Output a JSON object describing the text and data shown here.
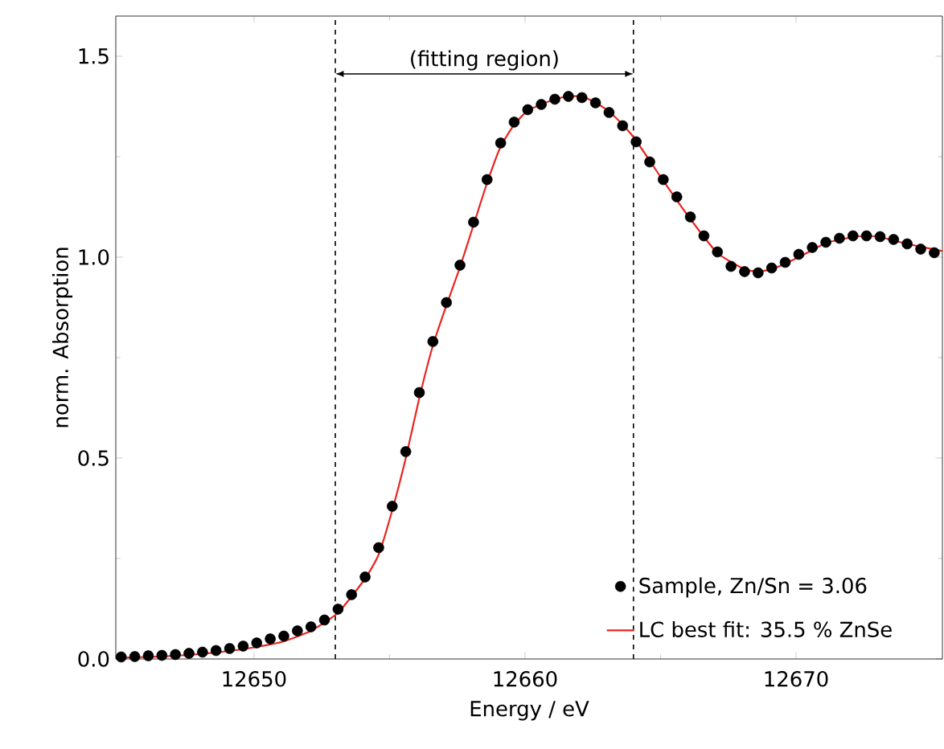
{
  "chart_data": {
    "type": "scatter",
    "xlabel": "Energy / eV",
    "ylabel": "norm. Absorption",
    "xlim": [
      12644.9,
      12675.4
    ],
    "ylim": [
      0,
      1.6
    ],
    "xticks": [
      12650,
      12660,
      12670
    ],
    "yticks": [
      {
        "value": 0,
        "label": "0.0"
      },
      0.5,
      {
        "value": 1,
        "label": "1.0"
      },
      1.5
    ],
    "legend": "bottom right",
    "series": [
      {
        "name": "Sample, Zn/Sn = 3.06",
        "color": "#000000",
        "marker": "circle",
        "x": [
          12645.1,
          12645.6,
          12646.1,
          12646.6,
          12647.1,
          12647.6,
          12648.1,
          12648.6,
          12649.1,
          12649.6,
          12650.1,
          12650.6,
          12651.1,
          12651.6,
          12652.1,
          12652.6,
          12653.1,
          12653.6,
          12654.1,
          12654.6,
          12655.1,
          12655.6,
          12656.1,
          12656.6,
          12657.1,
          12657.6,
          12658.1,
          12658.6,
          12659.1,
          12659.6,
          12660.1,
          12660.6,
          12661.1,
          12661.6,
          12662.1,
          12662.6,
          12663.1,
          12663.6,
          12664.1,
          12664.6,
          12665.1,
          12665.6,
          12666.1,
          12666.6,
          12667.1,
          12667.6,
          12668.1,
          12668.6,
          12669.1,
          12669.6,
          12670.1,
          12670.6,
          12671.1,
          12671.6,
          12672.1,
          12672.6,
          12673.1,
          12673.6,
          12674.1,
          12674.6,
          12675.1
        ],
        "values": [
          0.005,
          0.006,
          0.008,
          0.009,
          0.011,
          0.014,
          0.017,
          0.021,
          0.026,
          0.032,
          0.04,
          0.05,
          0.057,
          0.07,
          0.08,
          0.097,
          0.124,
          0.16,
          0.204,
          0.277,
          0.38,
          0.516,
          0.663,
          0.79,
          0.887,
          0.98,
          1.087,
          1.193,
          1.284,
          1.336,
          1.367,
          1.38,
          1.393,
          1.4,
          1.397,
          1.384,
          1.36,
          1.327,
          1.287,
          1.237,
          1.193,
          1.15,
          1.1,
          1.053,
          1.013,
          0.977,
          0.964,
          0.961,
          0.973,
          0.987,
          1.007,
          1.024,
          1.037,
          1.047,
          1.053,
          1.053,
          1.051,
          1.044,
          1.033,
          1.02,
          1.011
        ]
      },
      {
        "type": "line",
        "name": "LC best fit: 35.5 % ZnSe",
        "color": "#e8251f",
        "marker": "none",
        "line_style": "solid",
        "x": [
          12644.9,
          12646.1,
          12647.1,
          12648.1,
          12649.1,
          12650.1,
          12651.1,
          12652.1,
          12653.1,
          12654.1,
          12654.6,
          12655.1,
          12655.6,
          12656.1,
          12656.6,
          12657.1,
          12657.6,
          12658.1,
          12658.6,
          12659.1,
          12659.6,
          12660.1,
          12660.6,
          12661.1,
          12661.6,
          12662.1,
          12662.6,
          12663.1,
          12663.6,
          12664.1,
          12665.1,
          12666.1,
          12667.1,
          12668.1,
          12668.6,
          12669.1,
          12670.1,
          12671.1,
          12672.1,
          12672.6,
          12673.1,
          12674.1,
          12675.4
        ],
        "values": [
          0.003,
          0.005,
          0.008,
          0.013,
          0.02,
          0.03,
          0.044,
          0.07,
          0.115,
          0.2,
          0.26,
          0.37,
          0.5,
          0.65,
          0.78,
          0.88,
          0.975,
          1.08,
          1.185,
          1.275,
          1.33,
          1.365,
          1.38,
          1.393,
          1.4,
          1.4,
          1.385,
          1.362,
          1.33,
          1.29,
          1.19,
          1.095,
          1.01,
          0.97,
          0.965,
          0.97,
          1.0,
          1.035,
          1.05,
          1.053,
          1.05,
          1.033,
          1.015
        ]
      }
    ],
    "ref_lines": [
      {
        "axis": "x",
        "value": 12653,
        "color": "#000000",
        "line_style": "dashed"
      },
      {
        "axis": "x",
        "value": 12664,
        "color": "#000000",
        "line_style": "dashed"
      }
    ],
    "annotations": [
      "(fitting region)"
    ]
  }
}
